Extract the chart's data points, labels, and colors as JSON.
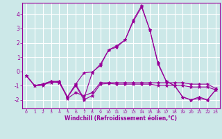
{
  "title": "",
  "xlabel": "Windchill (Refroidissement éolien,°C)",
  "ylabel": "",
  "bg_color": "#cce8e8",
  "grid_color": "#ffffff",
  "line_color": "#990099",
  "xlim": [
    -0.5,
    23.5
  ],
  "ylim": [
    -2.6,
    4.8
  ],
  "yticks": [
    -2,
    -1,
    0,
    1,
    2,
    3,
    4
  ],
  "xticks": [
    0,
    1,
    2,
    3,
    4,
    5,
    6,
    7,
    8,
    9,
    10,
    11,
    12,
    13,
    14,
    15,
    16,
    17,
    18,
    19,
    20,
    21,
    22,
    23
  ],
  "series": [
    [
      -0.3,
      -1.0,
      -1.0,
      -0.7,
      -0.7,
      -1.8,
      -0.9,
      -0.1,
      -0.05,
      0.4,
      1.5,
      1.7,
      2.2,
      3.5,
      4.5,
      2.9,
      0.6,
      -0.7,
      -1.0,
      -1.8,
      -2.0,
      -1.8,
      -2.0,
      -1.3
    ],
    [
      -0.3,
      -1.0,
      -0.9,
      -0.8,
      -0.7,
      -1.9,
      -1.5,
      -1.7,
      -1.5,
      -0.8,
      -0.8,
      -0.8,
      -0.8,
      -0.8,
      -0.8,
      -0.8,
      -0.8,
      -0.8,
      -0.8,
      -0.8,
      -0.9,
      -0.9,
      -0.9,
      -1.2
    ],
    [
      -0.3,
      -1.0,
      -0.9,
      -0.7,
      -0.8,
      -1.8,
      -1.0,
      -2.0,
      -1.7,
      -0.9,
      -0.85,
      -0.9,
      -0.9,
      -0.9,
      -0.9,
      -0.9,
      -1.0,
      -1.0,
      -1.0,
      -1.0,
      -1.1,
      -1.1,
      -1.1,
      -1.3
    ],
    [
      -0.3,
      -1.0,
      -0.9,
      -0.7,
      -0.8,
      -1.8,
      -0.9,
      -1.9,
      -0.1,
      0.5,
      1.5,
      1.8,
      2.2,
      3.6,
      4.6,
      2.9,
      0.5,
      -0.7,
      -1.0,
      -1.8,
      -2.0,
      -1.9,
      -2.0,
      -1.3
    ]
  ]
}
